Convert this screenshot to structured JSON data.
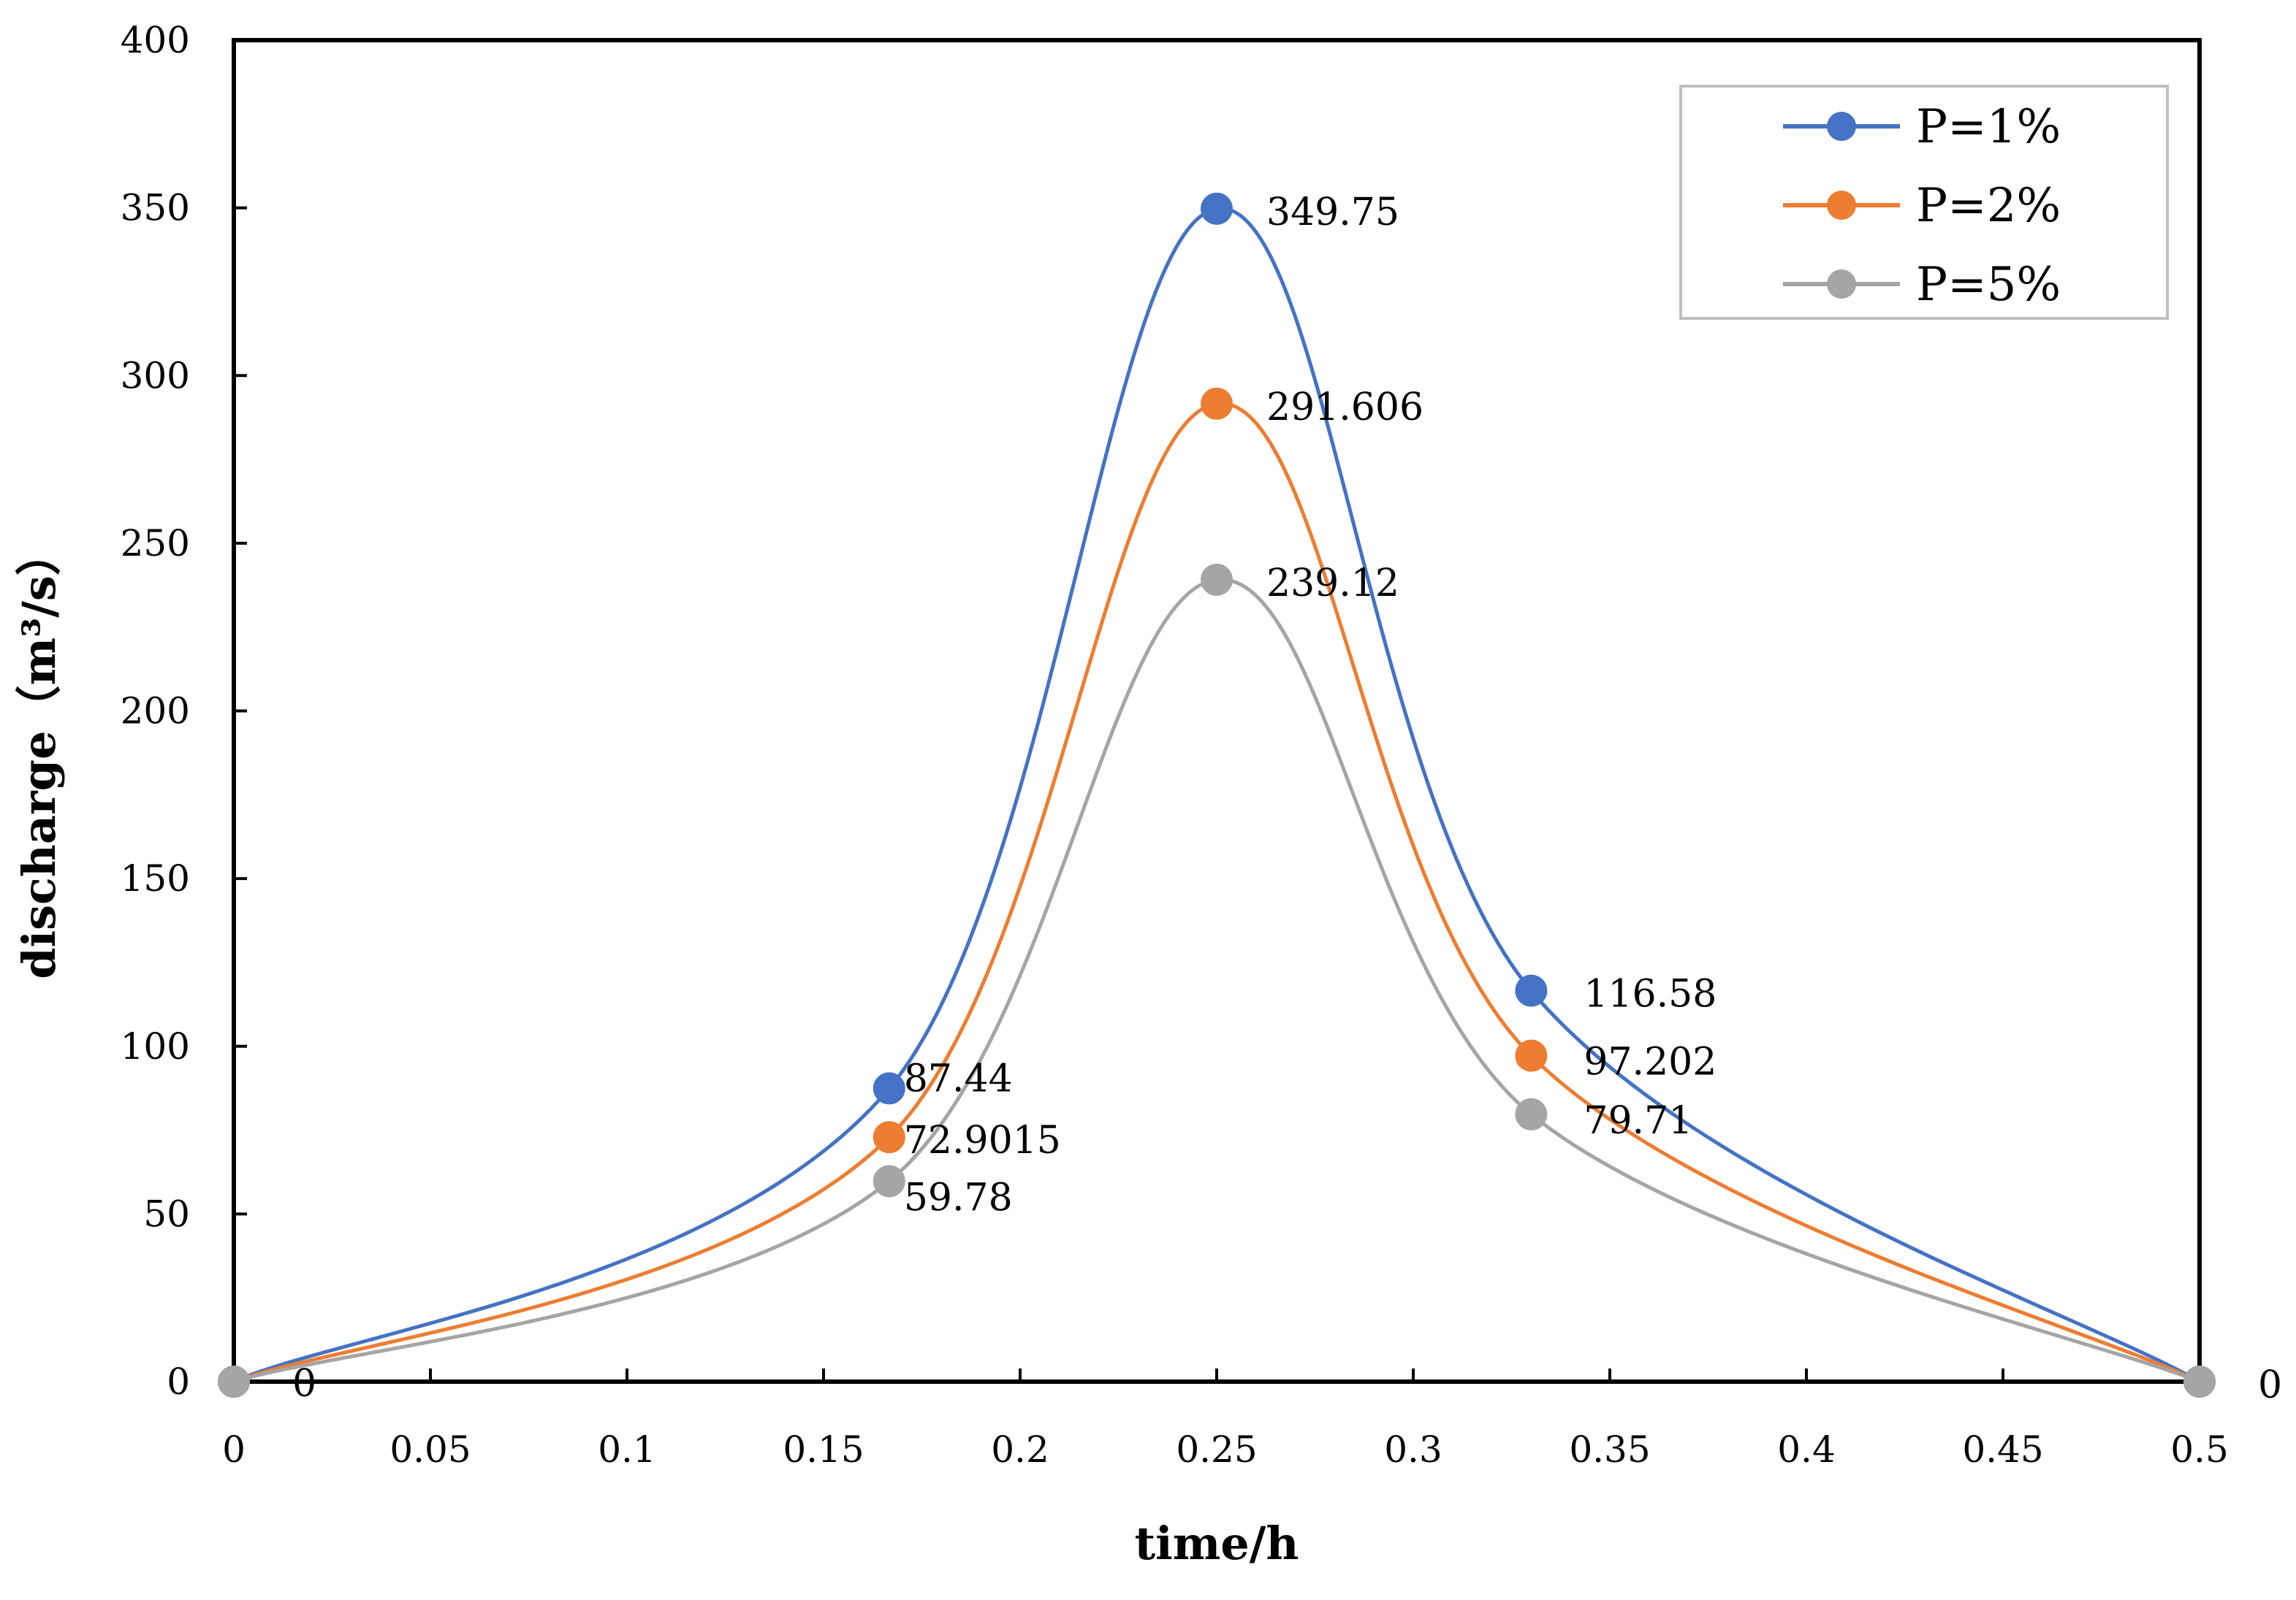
{
  "chart_data": {
    "type": "line",
    "title": "",
    "xlabel": "time/h",
    "ylabel": "discharge（m³/s）",
    "xlim": [
      0,
      0.5
    ],
    "ylim": [
      0,
      400
    ],
    "grid": false,
    "legend_position": "top-right",
    "x_ticks": [
      {
        "value": 0,
        "label": "0"
      },
      {
        "value": 0.05,
        "label": "0.05"
      },
      {
        "value": 0.1,
        "label": "0.1"
      },
      {
        "value": 0.15,
        "label": "0.15"
      },
      {
        "value": 0.2,
        "label": "0.2"
      },
      {
        "value": 0.25,
        "label": "0.25"
      },
      {
        "value": 0.3,
        "label": "0.3"
      },
      {
        "value": 0.35,
        "label": "0.35"
      },
      {
        "value": 0.4,
        "label": "0.4"
      },
      {
        "value": 0.45,
        "label": "0.45"
      },
      {
        "value": 0.5,
        "label": "0.5"
      }
    ],
    "y_ticks": [
      {
        "value": 0,
        "label": "0"
      },
      {
        "value": 50,
        "label": "50"
      },
      {
        "value": 100,
        "label": "100"
      },
      {
        "value": 150,
        "label": "150"
      },
      {
        "value": 200,
        "label": "200"
      },
      {
        "value": 250,
        "label": "250"
      },
      {
        "value": 300,
        "label": "300"
      },
      {
        "value": 350,
        "label": "350"
      },
      {
        "value": 400,
        "label": "400"
      }
    ],
    "series": [
      {
        "name": "P=1%",
        "color": "#4472C4",
        "x": [
          0,
          0.1667,
          0.25,
          0.33,
          0.5
        ],
        "y": [
          0,
          87.44,
          349.75,
          116.58,
          0
        ],
        "labels": [
          "0",
          "87.44",
          "349.75",
          "116.58",
          "0"
        ]
      },
      {
        "name": "P=2%",
        "color": "#ED7D31",
        "x": [
          0,
          0.1667,
          0.25,
          0.33,
          0.5
        ],
        "y": [
          0,
          72.9015,
          291.606,
          97.202,
          0
        ],
        "labels": [
          "",
          "72.9015",
          "291.606",
          "97.202",
          ""
        ]
      },
      {
        "name": "P=5%",
        "color": "#A5A5A5",
        "x": [
          0,
          0.1667,
          0.25,
          0.33,
          0.5
        ],
        "y": [
          0,
          59.78,
          239.12,
          79.71,
          0
        ],
        "labels": [
          "",
          "59.78",
          "239.12",
          "79.71",
          ""
        ]
      }
    ]
  }
}
